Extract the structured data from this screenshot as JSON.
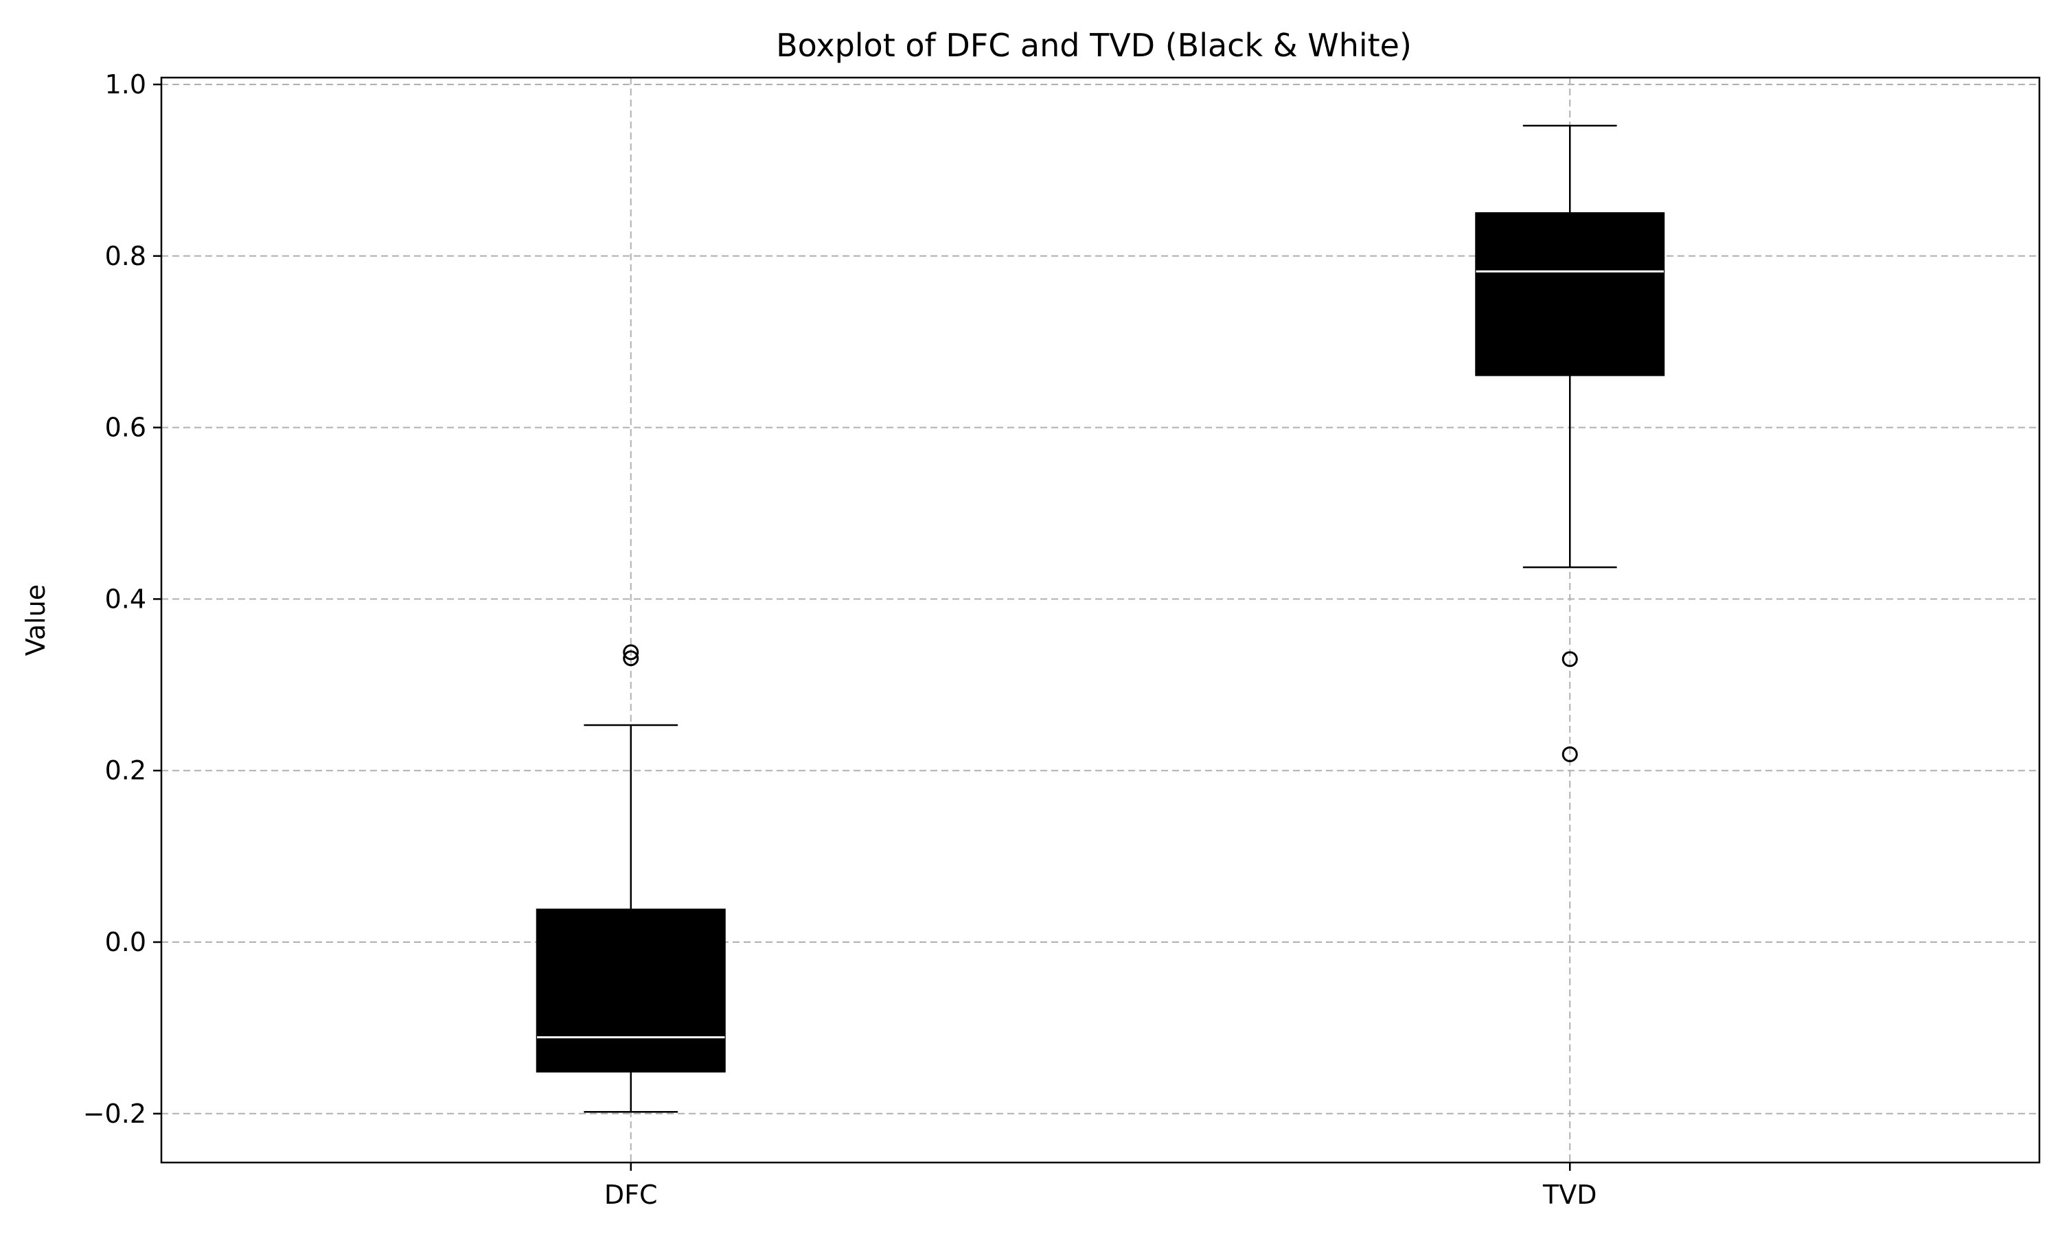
{
  "chart_data": {
    "type": "box",
    "title": "Boxplot of DFC and TVD (Black & White)",
    "xlabel": "",
    "ylabel": "Value",
    "ylim": [
      -0.257,
      1.008
    ],
    "yticks": [
      {
        "value": -0.2,
        "label": "−0.2"
      },
      {
        "value": 0.0,
        "label": "0.0"
      },
      {
        "value": 0.2,
        "label": "0.2"
      },
      {
        "value": 0.4,
        "label": "0.4"
      },
      {
        "value": 0.6,
        "label": "0.6"
      },
      {
        "value": 0.8,
        "label": "0.8"
      },
      {
        "value": 1.0,
        "label": "1.0"
      }
    ],
    "categories": [
      "DFC",
      "TVD"
    ],
    "grid": true,
    "colors": {
      "box_fill": "#000000",
      "median": "#ffffff",
      "grid": "#b0b0b0"
    },
    "boxes": [
      {
        "name": "DFC",
        "whisker_low": -0.198,
        "q1": -0.151,
        "median": -0.111,
        "q3": 0.038,
        "whisker_high": 0.253,
        "fliers": [
          0.331,
          0.338
        ]
      },
      {
        "name": "TVD",
        "whisker_low": 0.437,
        "q1": 0.661,
        "median": 0.782,
        "q3": 0.85,
        "whisker_high": 0.952,
        "fliers": [
          0.33,
          0.219
        ]
      }
    ]
  }
}
